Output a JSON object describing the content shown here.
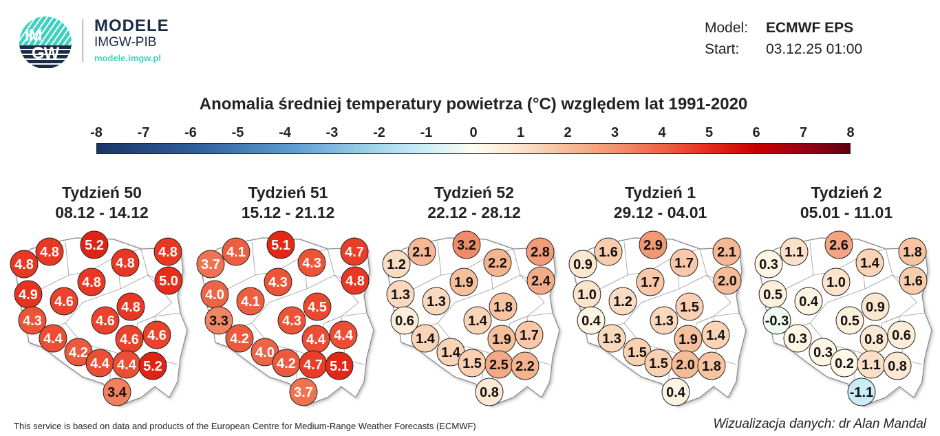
{
  "logo": {
    "circle_text_1": "IM",
    "circle_text_2": "GW",
    "name": "MODELE",
    "org": "IMGW-PIB",
    "url": "modele.imgw.pl"
  },
  "meta": {
    "model_label": "Model:",
    "model_value": "ECMWF EPS",
    "start_label": "Start:",
    "start_value": "03.12.25 01:00"
  },
  "title": "Anomalia średniej temperatury powietrza (°C) względem lat 1991-2020",
  "colorbar": {
    "ticks": [
      "-8",
      "-7",
      "-6",
      "-5",
      "-4",
      "-3",
      "-2",
      "-1",
      "0",
      "1",
      "2",
      "3",
      "4",
      "5",
      "6",
      "7",
      "8"
    ],
    "range": [
      -8,
      8
    ],
    "stops": [
      [
        -8,
        "#1a3566"
      ],
      [
        -6,
        "#2d5c99"
      ],
      [
        -4,
        "#5a98cf"
      ],
      [
        -2,
        "#a6d8ee"
      ],
      [
        -1,
        "#cdeef8"
      ],
      [
        0,
        "#fffdf0"
      ],
      [
        1,
        "#fbe4cc"
      ],
      [
        2,
        "#f6bc98"
      ],
      [
        3,
        "#f29470"
      ],
      [
        4,
        "#ef6444"
      ],
      [
        5,
        "#e62c1a"
      ],
      [
        6,
        "#c80000"
      ],
      [
        7,
        "#9c0012"
      ],
      [
        8,
        "#5e0010"
      ]
    ]
  },
  "weeks": [
    {
      "name": "Tydzień 50",
      "dates": "08.12 - 14.12",
      "values": [
        "4.8",
        "4.8",
        "5.2",
        "4.8",
        "4.8",
        "5.0",
        "4.8",
        "4.9",
        "4.6",
        "4.8",
        "4.3",
        "4.6",
        "4.4",
        "4.6",
        "4.6",
        "4.2",
        "4.4",
        "4.4",
        "5.2",
        "3.4"
      ]
    },
    {
      "name": "Tydzień 51",
      "dates": "15.12 - 21.12",
      "values": [
        "3.7",
        "4.1",
        "5.1",
        "4.3",
        "4.7",
        "4.8",
        "4.3",
        "4.0",
        "4.1",
        "4.5",
        "3.3",
        "4.3",
        "4.2",
        "4.4",
        "4.4",
        "4.0",
        "4.2",
        "4.7",
        "5.1",
        "3.7"
      ]
    },
    {
      "name": "Tydzień 52",
      "dates": "22.12 - 28.12",
      "values": [
        "1.2",
        "2.1",
        "3.2",
        "2.2",
        "2.8",
        "2.4",
        "1.9",
        "1.3",
        "1.3",
        "1.8",
        "0.6",
        "1.4",
        "1.4",
        "1.9",
        "1.7",
        "1.4",
        "1.5",
        "2.5",
        "2.2",
        "0.8"
      ]
    },
    {
      "name": "Tydzień 1",
      "dates": "29.12 - 04.01",
      "values": [
        "0.9",
        "1.6",
        "2.9",
        "1.7",
        "2.1",
        "2.0",
        "1.7",
        "1.0",
        "1.2",
        "1.5",
        "0.4",
        "1.3",
        "1.3",
        "1.9",
        "1.4",
        "1.5",
        "1.5",
        "2.0",
        "1.8",
        "0.4"
      ]
    },
    {
      "name": "Tydzień 2",
      "dates": "05.01 - 11.01",
      "values": [
        "0.3",
        "1.1",
        "2.6",
        "1.4",
        "1.8",
        "1.6",
        "1.0",
        "0.5",
        "0.4",
        "0.9",
        "-0.3",
        "0.5",
        "0.3",
        "0.8",
        "0.6",
        "0.3",
        "0.2",
        "1.1",
        "0.8",
        "-1.1"
      ]
    }
  ],
  "footer": {
    "left": "This service is based on data and products of the European Centre for Medium-Range Weather Forecasts (ECMWF)",
    "right": "Wizualizacja danych: dr Alan Mandal"
  }
}
